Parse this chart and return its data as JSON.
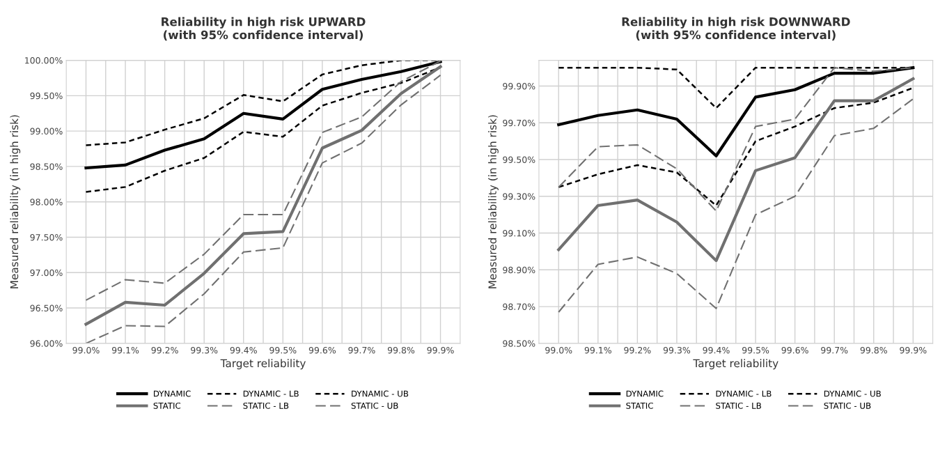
{
  "chart_data": [
    {
      "type": "line",
      "title": "Reliability in high risk UPWARD\n(with 95% confidence interval)",
      "xlabel": "Target reliability",
      "ylabel": "Measured reliability (in high risk)",
      "categories": [
        "99.0%",
        "99.1%",
        "99.2%",
        "99.3%",
        "99.4%",
        "99.5%",
        "99.6%",
        "99.7%",
        "99.8%",
        "99.9%"
      ],
      "ylim": [
        96,
        100
      ],
      "yticks": [
        {
          "value": 96,
          "label": "96.00%"
        },
        {
          "value": 96.5,
          "label": "96.50%"
        },
        {
          "value": 97,
          "label": "97.00%"
        },
        {
          "value": 97.5,
          "label": "97.50%"
        },
        {
          "value": 98,
          "label": "98.00%"
        },
        {
          "value": 98.5,
          "label": "98.50%"
        },
        {
          "value": 99,
          "label": "99.00%"
        },
        {
          "value": 99.5,
          "label": "99.50%"
        },
        {
          "value": 100,
          "label": "100.00%"
        }
      ],
      "grid": true,
      "legend": "bottom",
      "marker": "none",
      "series": [
        {
          "name": "DYNAMIC",
          "color": "#000000",
          "line_style": "solid",
          "values": [
            98.48,
            98.52,
            98.73,
            98.89,
            99.25,
            99.17,
            99.59,
            99.73,
            99.84,
            99.98
          ]
        },
        {
          "name": "DYNAMIC - LB",
          "color": "#000000",
          "line_style": "dotted",
          "values": [
            98.14,
            98.21,
            98.44,
            98.62,
            98.99,
            98.92,
            99.36,
            99.54,
            99.68,
            99.9
          ]
        },
        {
          "name": "DYNAMIC - UB",
          "color": "#000000",
          "line_style": "dotted",
          "values": [
            98.8,
            98.84,
            99.02,
            99.18,
            99.51,
            99.42,
            99.8,
            99.93,
            100.0,
            100.0
          ]
        },
        {
          "name": "STATIC",
          "color": "#707070",
          "line_style": "solid",
          "values": [
            96.27,
            96.58,
            96.54,
            96.99,
            97.55,
            97.58,
            98.76,
            99.01,
            99.53,
            99.91
          ]
        },
        {
          "name": "STATIC - LB",
          "color": "#707070",
          "line_style": "dashed",
          "values": [
            96.0,
            96.25,
            96.24,
            96.7,
            97.29,
            97.35,
            98.55,
            98.83,
            99.37,
            99.79
          ]
        },
        {
          "name": "STATIC - UB",
          "color": "#707070",
          "line_style": "dashed",
          "values": [
            96.61,
            96.9,
            96.85,
            97.26,
            97.82,
            97.82,
            98.98,
            99.2,
            99.7,
            99.99
          ]
        }
      ]
    },
    {
      "type": "line",
      "title": "Reliability in high risk DOWNWARD\n(with 95% confidence interval)",
      "xlabel": "Target reliability",
      "ylabel": "Measured reliability (in high risk)",
      "categories": [
        "99.0%",
        "99.1%",
        "99.2%",
        "99.3%",
        "99.4%",
        "99.5%",
        "99.6%",
        "99.7%",
        "99.8%",
        "99.9%"
      ],
      "ylim": [
        98.5,
        100.04
      ],
      "yticks": [
        {
          "value": 98.5,
          "label": "98.50%"
        },
        {
          "value": 98.7,
          "label": "98.70%"
        },
        {
          "value": 98.9,
          "label": "98.90%"
        },
        {
          "value": 99.1,
          "label": "99.10%"
        },
        {
          "value": 99.3,
          "label": "99.30%"
        },
        {
          "value": 99.5,
          "label": "99.50%"
        },
        {
          "value": 99.7,
          "label": "99.70%"
        },
        {
          "value": 99.9,
          "label": "99.90%"
        }
      ],
      "grid": true,
      "legend": "bottom",
      "marker": "none",
      "series": [
        {
          "name": "DYNAMIC",
          "color": "#000000",
          "line_style": "solid",
          "values": [
            99.69,
            99.74,
            99.77,
            99.72,
            99.52,
            99.84,
            99.88,
            99.97,
            99.97,
            100.0
          ]
        },
        {
          "name": "DYNAMIC - LB",
          "color": "#000000",
          "line_style": "dotted",
          "values": [
            99.35,
            99.42,
            99.47,
            99.43,
            99.25,
            99.6,
            99.68,
            99.78,
            99.81,
            99.89
          ]
        },
        {
          "name": "DYNAMIC - UB",
          "color": "#000000",
          "line_style": "dotted",
          "values": [
            100.0,
            100.0,
            100.0,
            99.99,
            99.78,
            100.0,
            100.0,
            100.0,
            100.0,
            100.0
          ]
        },
        {
          "name": "STATIC",
          "color": "#707070",
          "line_style": "solid",
          "values": [
            99.01,
            99.25,
            99.28,
            99.16,
            98.95,
            99.44,
            99.51,
            99.82,
            99.82,
            99.94
          ]
        },
        {
          "name": "STATIC - LB",
          "color": "#707070",
          "line_style": "dashed",
          "values": [
            98.67,
            98.93,
            98.97,
            98.88,
            98.69,
            99.2,
            99.3,
            99.63,
            99.67,
            99.83
          ]
        },
        {
          "name": "STATIC - UB",
          "color": "#707070",
          "line_style": "dashed",
          "values": [
            99.35,
            99.57,
            99.58,
            99.45,
            99.22,
            99.68,
            99.72,
            100.0,
            99.98,
            100.0
          ]
        }
      ]
    }
  ]
}
